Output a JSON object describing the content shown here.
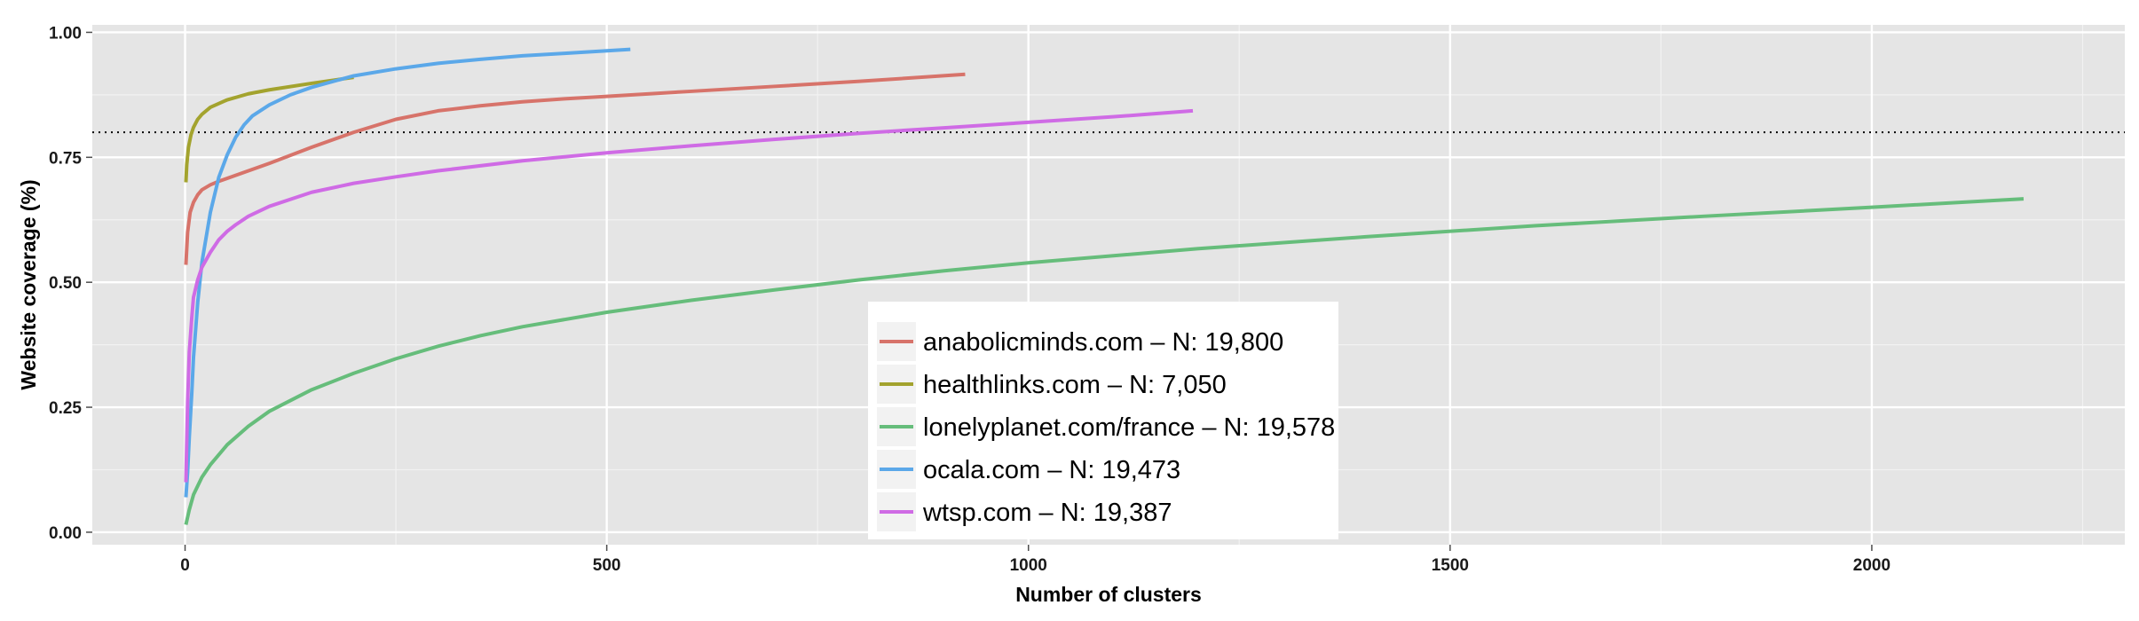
{
  "chart_data": {
    "type": "line",
    "xlabel": "Number of clusters",
    "ylabel": "Website coverage (%)",
    "xlim": [
      -110,
      2300
    ],
    "ylim": [
      -0.025,
      1.015
    ],
    "x_ticks": [
      0,
      500,
      1000,
      1500,
      2000
    ],
    "x_tick_labels": [
      "0",
      "500",
      "1000",
      "1500",
      "2000"
    ],
    "x_minor_ticks": [
      250,
      750,
      1250,
      1750,
      2250
    ],
    "y_ticks": [
      0,
      0.25,
      0.5,
      0.75,
      1.0
    ],
    "y_tick_labels": [
      "0.00",
      "0.25",
      "0.50",
      "0.75",
      "1.00"
    ],
    "y_minor_ticks": [
      0.125,
      0.375,
      0.625,
      0.875
    ],
    "grid": true,
    "reference_line": {
      "y": 0.8,
      "style": "dotted",
      "color": "#000000"
    },
    "legend_position": "bottom-center",
    "series": [
      {
        "name": "anabolicminds.com – N: 19,800",
        "color": "#D7736A",
        "x": [
          1,
          3,
          6,
          10,
          15,
          20,
          30,
          40,
          60,
          80,
          100,
          150,
          200,
          250,
          300,
          350,
          400,
          450,
          500,
          600,
          700,
          800,
          925
        ],
        "y": [
          0.535,
          0.6,
          0.64,
          0.66,
          0.675,
          0.685,
          0.695,
          0.702,
          0.714,
          0.726,
          0.738,
          0.77,
          0.8,
          0.826,
          0.843,
          0.853,
          0.861,
          0.867,
          0.872,
          0.882,
          0.892,
          0.902,
          0.916
        ]
      },
      {
        "name": "healthlinks.com – N: 7,050",
        "color": "#A3A32E",
        "x": [
          1,
          2,
          4,
          7,
          10,
          15,
          20,
          30,
          50,
          75,
          100,
          150,
          200
        ],
        "y": [
          0.7,
          0.735,
          0.77,
          0.795,
          0.81,
          0.826,
          0.836,
          0.85,
          0.865,
          0.877,
          0.885,
          0.898,
          0.91
        ]
      },
      {
        "name": "lonelyplanet.com/france – N: 19,578",
        "color": "#66BD7B",
        "x": [
          1,
          5,
          10,
          20,
          30,
          50,
          75,
          100,
          150,
          200,
          250,
          300,
          350,
          400,
          500,
          600,
          700,
          800,
          900,
          1000,
          1200,
          1400,
          1600,
          1800,
          2000,
          2180
        ],
        "y": [
          0.015,
          0.045,
          0.075,
          0.11,
          0.135,
          0.175,
          0.212,
          0.242,
          0.285,
          0.318,
          0.347,
          0.372,
          0.393,
          0.411,
          0.44,
          0.464,
          0.485,
          0.505,
          0.523,
          0.539,
          0.567,
          0.591,
          0.613,
          0.632,
          0.65,
          0.667
        ]
      },
      {
        "name": "ocala.com – N: 19,473",
        "color": "#5BA8E9",
        "x": [
          1,
          3,
          5,
          8,
          10,
          15,
          20,
          30,
          40,
          50,
          60,
          70,
          80,
          100,
          125,
          150,
          200,
          250,
          300,
          350,
          400,
          450,
          500,
          528
        ],
        "y": [
          0.07,
          0.12,
          0.19,
          0.28,
          0.35,
          0.46,
          0.54,
          0.64,
          0.71,
          0.755,
          0.79,
          0.815,
          0.833,
          0.855,
          0.875,
          0.89,
          0.913,
          0.927,
          0.938,
          0.946,
          0.953,
          0.958,
          0.963,
          0.966
        ]
      },
      {
        "name": "wtsp.com – N: 19,387",
        "color": "#CF6BE5",
        "x": [
          1,
          3,
          5,
          8,
          10,
          15,
          20,
          30,
          40,
          50,
          60,
          75,
          100,
          150,
          200,
          250,
          300,
          400,
          500,
          600,
          700,
          800,
          900,
          1000,
          1100,
          1195
        ],
        "y": [
          0.1,
          0.26,
          0.36,
          0.43,
          0.47,
          0.505,
          0.53,
          0.56,
          0.585,
          0.602,
          0.615,
          0.632,
          0.652,
          0.68,
          0.698,
          0.711,
          0.723,
          0.743,
          0.759,
          0.773,
          0.786,
          0.798,
          0.809,
          0.82,
          0.831,
          0.843
        ]
      }
    ]
  }
}
